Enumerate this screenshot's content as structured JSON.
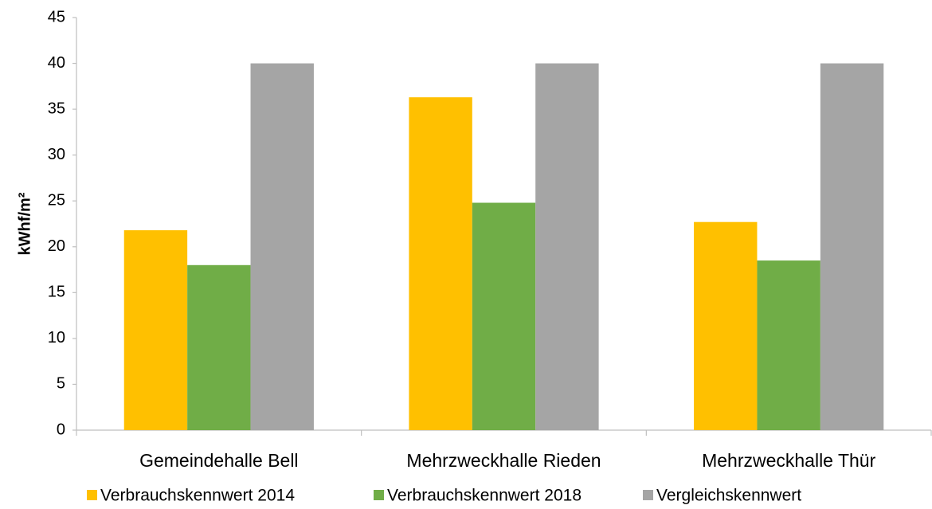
{
  "chart_data": {
    "type": "bar",
    "y_label": "kWhf/m²",
    "categories": [
      "Gemeindehalle Bell",
      "Mehrzweckhalle Rieden",
      "Mehrzweckhalle Thür"
    ],
    "series": [
      {
        "name": "Verbrauchskennwert 2014",
        "color": "#ffc000",
        "values": [
          21.8,
          36.3,
          22.7
        ]
      },
      {
        "name": "Verbrauchskennwert 2018",
        "color": "#70ad47",
        "values": [
          18.0,
          24.8,
          18.5
        ]
      },
      {
        "name": "Vergleichskennwert",
        "color": "#a5a5a5",
        "values": [
          40,
          40,
          40
        ]
      }
    ],
    "ylim": [
      0,
      45
    ],
    "yticks": [
      0,
      5,
      10,
      15,
      20,
      25,
      30,
      35,
      40,
      45
    ],
    "grid": false,
    "legend": "bottom"
  }
}
